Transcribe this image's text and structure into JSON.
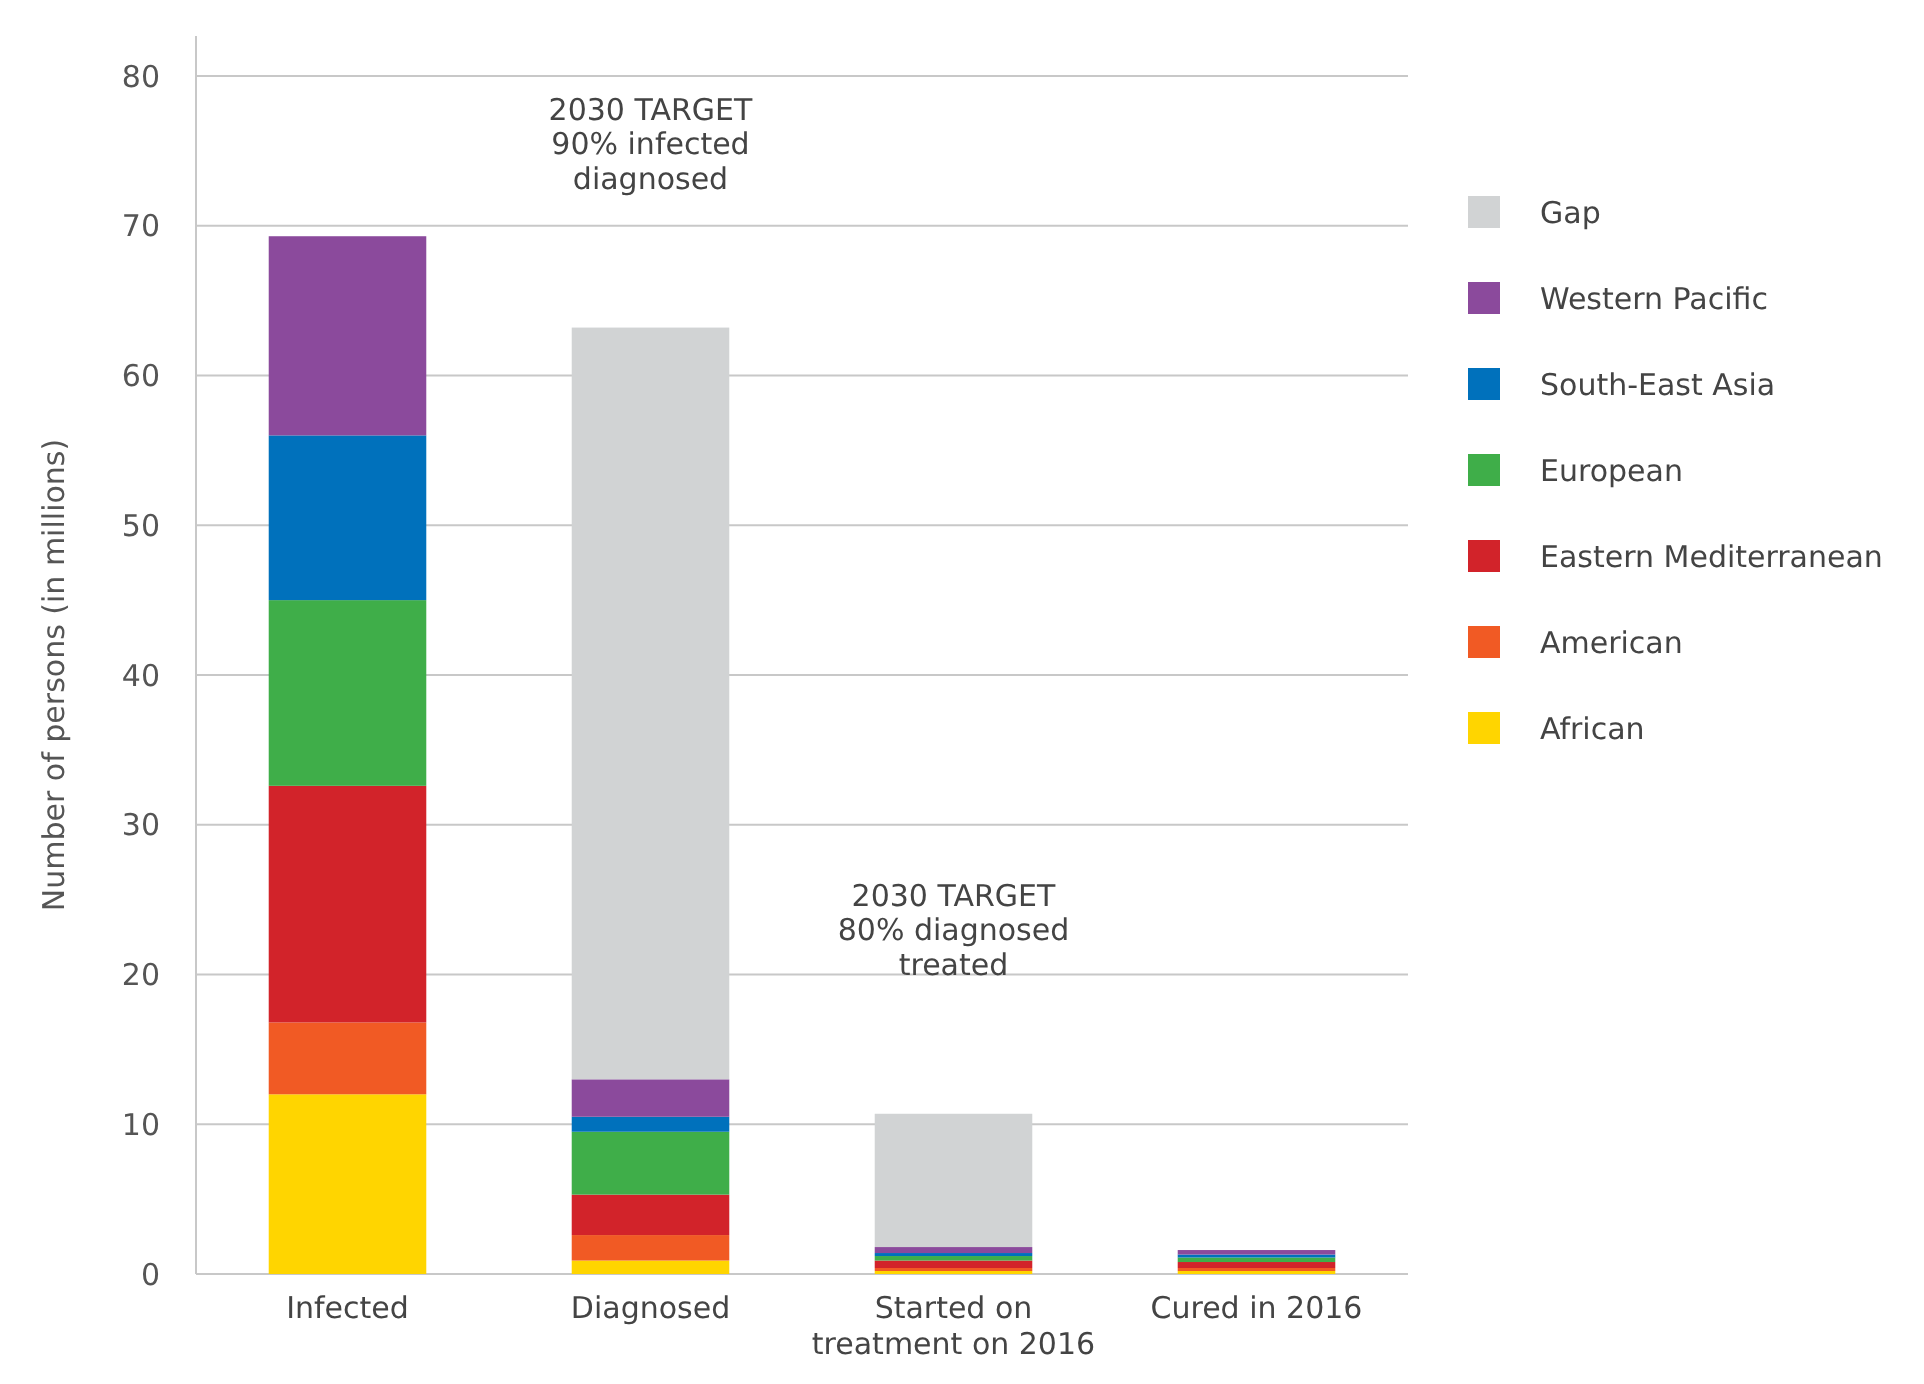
{
  "chart_data": {
    "type": "bar",
    "stacked": true,
    "ylabel": "Number of persons (in millions)",
    "categories": [
      "Infected",
      "Diagnosed",
      "Started on treatment on 2016",
      "Cured in 2016"
    ],
    "series": [
      {
        "name": "African",
        "color": "#ffd500",
        "values": [
          12,
          0.9,
          0.2,
          0.2
        ]
      },
      {
        "name": "American",
        "color": "#f15a24",
        "values": [
          4.8,
          1.7,
          0.2,
          0.2
        ]
      },
      {
        "name": "Eastern Mediterranean",
        "color": "#d2232a",
        "values": [
          15.8,
          2.7,
          0.5,
          0.4
        ]
      },
      {
        "name": "European",
        "color": "#3fae49",
        "values": [
          12.4,
          4.2,
          0.3,
          0.3
        ]
      },
      {
        "name": "South-East Asia",
        "color": "#0071bc",
        "values": [
          11,
          1,
          0.2,
          0.2
        ]
      },
      {
        "name": "Western Pacific",
        "color": "#8b4a9c",
        "values": [
          13.3,
          2.5,
          0.4,
          0.3
        ]
      },
      {
        "name": "Gap",
        "color": "#d1d3d4",
        "values": [
          null,
          50.2,
          8.9,
          null
        ]
      }
    ],
    "ylim": [
      0,
      80
    ],
    "yticks": [
      0,
      10,
      20,
      30,
      40,
      50,
      60,
      70,
      80
    ],
    "grid": "y",
    "legend": "top right",
    "annotations": [
      "2030 TARGET\n90% infected\ndiagnosed",
      "2030 TARGET\n80% diagnosed\ntreated"
    ]
  }
}
